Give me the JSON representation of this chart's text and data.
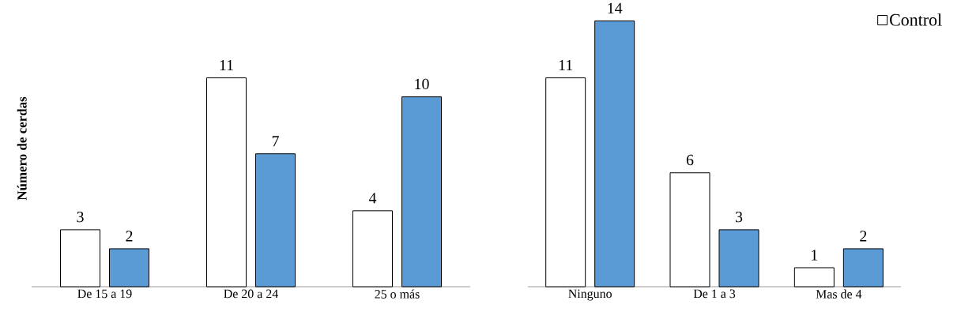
{
  "chart_data": [
    {
      "type": "bar",
      "ylabel": "Número de cerdas",
      "categories": [
        "De 15 a 19",
        "De 20 a 24",
        "25 o más"
      ],
      "series": [
        {
          "color": "#ffffff",
          "values": [
            3,
            11,
            4
          ]
        },
        {
          "color": "#5b9bd5",
          "values": [
            2,
            7,
            10
          ]
        }
      ],
      "data_labels": true
    },
    {
      "type": "bar",
      "categories": [
        "Ninguno",
        "De 1 a 3",
        "Mas de 4"
      ],
      "series": [
        {
          "name": "Control",
          "color": "#ffffff",
          "values": [
            11,
            6,
            1
          ]
        },
        {
          "color": "#5b9bd5",
          "values": [
            14,
            3,
            2
          ]
        }
      ],
      "data_labels": true,
      "legend": "top right"
    }
  ]
}
